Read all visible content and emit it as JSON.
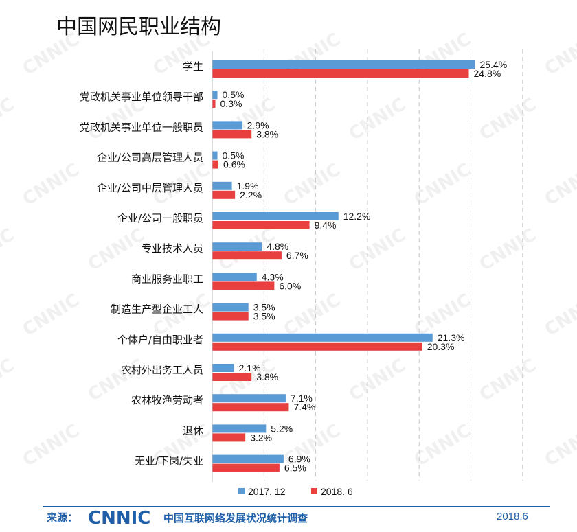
{
  "title": "中国网民职业结构",
  "footer": {
    "source_label": "来源：",
    "logo_text": "CNNIC",
    "source_name": "中国互联网络发展状况统计调查",
    "date": "2018.6"
  },
  "watermark": "CNNIC",
  "colors": {
    "series_2017": "#5b9bd5",
    "series_2018": "#e8403f",
    "footer_blue": "#1f5fa8",
    "watermark": "#e3e3e3"
  },
  "chart_data": {
    "type": "bar",
    "orientation": "horizontal",
    "title": "中国网民职业结构",
    "categories": [
      "学生",
      "党政机关事业单位领导干部",
      "党政机关事业单位一般职员",
      "企业/公司高层管理人员",
      "企业/公司中层管理人员",
      "企业/公司一般职员",
      "专业技术人员",
      "商业服务业职工",
      "制造生产型企业工人",
      "个体户/自由职业者",
      "农村外出务工人员",
      "农林牧渔劳动者",
      "退休",
      "无业/下岗/失业"
    ],
    "series": [
      {
        "name": "2017. 12",
        "color": "#5b9bd5",
        "values": [
          25.4,
          0.5,
          2.9,
          0.5,
          1.9,
          12.2,
          4.8,
          4.3,
          3.5,
          21.3,
          2.1,
          7.1,
          5.2,
          6.9
        ],
        "labels": [
          "25.4%",
          "0.5%",
          "2.9%",
          "0.5%",
          "1.9%",
          "12.2%",
          "4.8%",
          "4.3%",
          "3.5%",
          "21.3%",
          "2.1%",
          "7.1%",
          "5.2%",
          "6.9%"
        ]
      },
      {
        "name": "2018. 6",
        "color": "#e8403f",
        "values": [
          24.8,
          0.3,
          3.8,
          0.6,
          2.2,
          9.4,
          6.7,
          6.0,
          3.5,
          20.3,
          3.8,
          7.4,
          3.2,
          6.5
        ],
        "labels": [
          "24.8%",
          "0.3%",
          "3.8%",
          "0.6%",
          "2.2%",
          "9.4%",
          "6.7%",
          "6.0%",
          "3.5%",
          "20.3%",
          "3.8%",
          "7.4%",
          "3.2%",
          "6.5%"
        ]
      }
    ],
    "xlim": [
      0,
      30
    ],
    "grid": "vertical-dashed",
    "legend": "bottom-center"
  }
}
